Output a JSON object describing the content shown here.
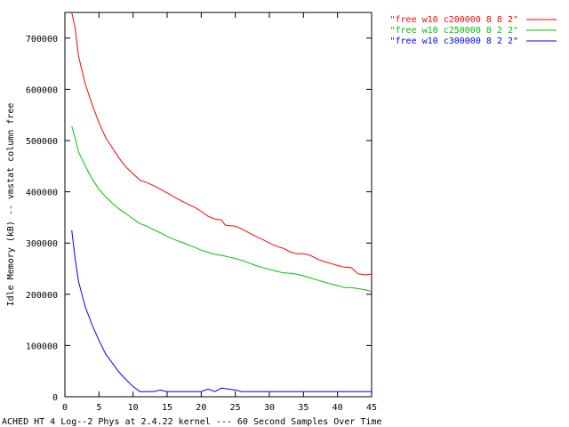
{
  "chart_data": {
    "type": "line",
    "title": "",
    "xlabel": "ACHED HT 4 Log--2 Phys at 2.4.22 kernel --- 60 Second Samples Over Time",
    "ylabel": "Idle Memory (kB) -- vmstat column free",
    "xlim": [
      0,
      45
    ],
    "ylim": [
      0,
      750000
    ],
    "x_ticks": [
      0,
      5,
      10,
      15,
      20,
      25,
      30,
      35,
      40,
      45
    ],
    "y_ticks": [
      0,
      100000,
      200000,
      300000,
      400000,
      500000,
      600000,
      700000
    ],
    "x_tick_labels": [
      "0",
      "5",
      "10",
      "15",
      "20",
      "25",
      "30",
      "35",
      "40",
      "45"
    ],
    "y_tick_labels": [
      "0",
      "100000",
      "200000",
      "300000",
      "400000",
      "500000",
      "600000",
      "700000"
    ],
    "grid": false,
    "legend_position": "top-right",
    "series": [
      {
        "name": "\"free w10 c200000 8 8 2\"",
        "color": "#ff0000",
        "points": [
          [
            1,
            750000
          ],
          [
            1.5,
            720000
          ],
          [
            2,
            665000
          ],
          [
            3,
            610000
          ],
          [
            4,
            570000
          ],
          [
            5,
            535000
          ],
          [
            6,
            505000
          ],
          [
            7,
            485000
          ],
          [
            8,
            465000
          ],
          [
            9,
            448000
          ],
          [
            10,
            435000
          ],
          [
            11,
            423000
          ],
          [
            12,
            418000
          ],
          [
            13,
            412000
          ],
          [
            14,
            405000
          ],
          [
            15,
            398000
          ],
          [
            16,
            390000
          ],
          [
            17,
            383000
          ],
          [
            18,
            376000
          ],
          [
            19,
            370000
          ],
          [
            20,
            362000
          ],
          [
            21,
            352000
          ],
          [
            22,
            347000
          ],
          [
            23,
            345000
          ],
          [
            23.5,
            335000
          ],
          [
            24,
            334000
          ],
          [
            25,
            333000
          ],
          [
            26,
            327000
          ],
          [
            27,
            320000
          ],
          [
            28,
            313000
          ],
          [
            29,
            307000
          ],
          [
            30,
            300000
          ],
          [
            31,
            294000
          ],
          [
            32,
            290000
          ],
          [
            33,
            283000
          ],
          [
            34,
            279000
          ],
          [
            35,
            279000
          ],
          [
            36,
            276000
          ],
          [
            37,
            269000
          ],
          [
            38,
            264000
          ],
          [
            39,
            260000
          ],
          [
            40,
            256000
          ],
          [
            41,
            253000
          ],
          [
            42,
            252000
          ],
          [
            43,
            240000
          ],
          [
            44,
            238000
          ],
          [
            45,
            239000
          ]
        ]
      },
      {
        "name": "\"free w10 c250000 8 2 2\"",
        "color": "#00c000",
        "points": [
          [
            1,
            528000
          ],
          [
            1.5,
            505000
          ],
          [
            2,
            478000
          ],
          [
            3,
            450000
          ],
          [
            4,
            425000
          ],
          [
            5,
            405000
          ],
          [
            6,
            390000
          ],
          [
            7,
            377000
          ],
          [
            8,
            366000
          ],
          [
            9,
            357000
          ],
          [
            10,
            347000
          ],
          [
            11,
            338000
          ],
          [
            12,
            333000
          ],
          [
            13,
            326000
          ],
          [
            14,
            320000
          ],
          [
            15,
            313000
          ],
          [
            16,
            307000
          ],
          [
            17,
            302000
          ],
          [
            18,
            297000
          ],
          [
            19,
            292000
          ],
          [
            20,
            286000
          ],
          [
            21,
            282000
          ],
          [
            22,
            278000
          ],
          [
            23,
            276000
          ],
          [
            24,
            273000
          ],
          [
            25,
            270000
          ],
          [
            26,
            266000
          ],
          [
            27,
            261000
          ],
          [
            28,
            256000
          ],
          [
            29,
            252000
          ],
          [
            30,
            249000
          ],
          [
            31,
            245000
          ],
          [
            32,
            242000
          ],
          [
            33,
            241000
          ],
          [
            34,
            239000
          ],
          [
            35,
            236000
          ],
          [
            36,
            232000
          ],
          [
            37,
            228000
          ],
          [
            38,
            224000
          ],
          [
            39,
            220000
          ],
          [
            40,
            217000
          ],
          [
            41,
            213000
          ],
          [
            42,
            213000
          ],
          [
            43,
            211000
          ],
          [
            44,
            209000
          ],
          [
            45,
            205000
          ]
        ]
      },
      {
        "name": "\"free w10 c300000 8 2 2\"",
        "color": "#0000ff",
        "points": [
          [
            1,
            325000
          ],
          [
            1.5,
            270000
          ],
          [
            2,
            225000
          ],
          [
            3,
            175000
          ],
          [
            4,
            140000
          ],
          [
            5,
            110000
          ],
          [
            6,
            83000
          ],
          [
            7,
            65000
          ],
          [
            8,
            47000
          ],
          [
            9,
            33000
          ],
          [
            10,
            20000
          ],
          [
            11,
            10000
          ],
          [
            12,
            10000
          ],
          [
            13,
            10000
          ],
          [
            14,
            13000
          ],
          [
            15,
            10000
          ],
          [
            16,
            10000
          ],
          [
            17,
            10000
          ],
          [
            18,
            10000
          ],
          [
            19,
            10000
          ],
          [
            20,
            10000
          ],
          [
            21,
            15000
          ],
          [
            22,
            10000
          ],
          [
            23,
            17000
          ],
          [
            24,
            15000
          ],
          [
            25,
            13000
          ],
          [
            26,
            10000
          ],
          [
            27,
            10000
          ],
          [
            28,
            10000
          ],
          [
            30,
            10000
          ],
          [
            35,
            10000
          ],
          [
            40,
            10000
          ],
          [
            45,
            10000
          ]
        ]
      }
    ]
  }
}
